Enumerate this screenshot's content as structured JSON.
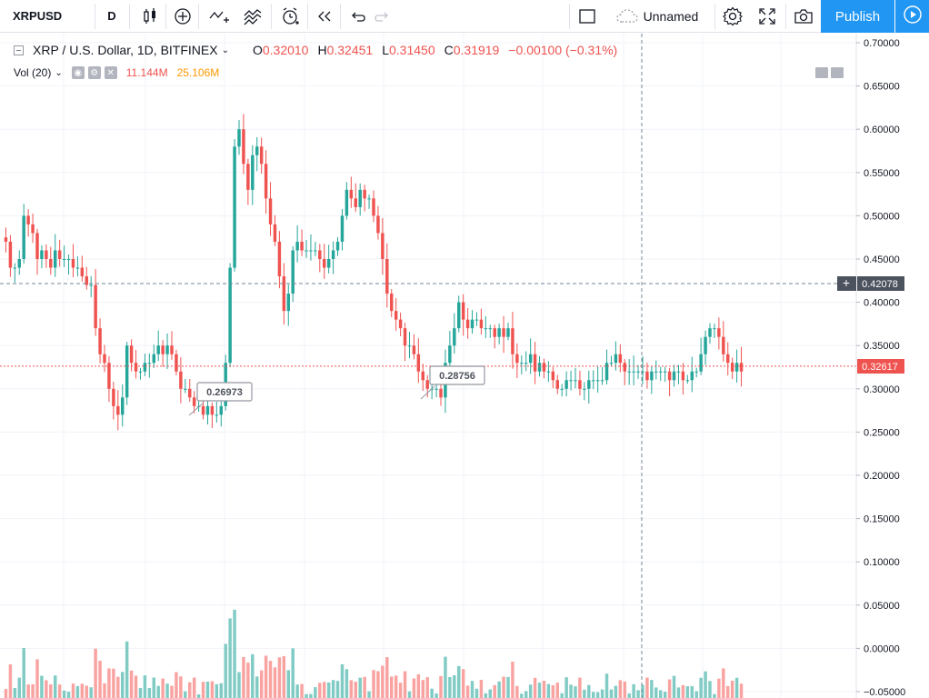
{
  "toolbar": {
    "symbol": "XRPUSD",
    "interval": "D",
    "layout_name": "Unnamed",
    "publish_label": "Publish",
    "icons": [
      "candles-icon",
      "add-indicator-icon",
      "compare-icon",
      "indicators-icon",
      "alert-icon",
      "replay-icon",
      "undo-icon",
      "redo-icon",
      "fullscreen-square-icon",
      "cloud-icon",
      "gear-icon",
      "fullscreen-icon",
      "camera-icon",
      "play-icon"
    ]
  },
  "legend": {
    "title": "XRP / U.S. Dollar, 1D, BITFINEX",
    "o_label": "O",
    "o_value": "0.32010",
    "h_label": "H",
    "h_value": "0.32451",
    "l_label": "L",
    "l_value": "0.31450",
    "c_label": "C",
    "c_value": "0.31919",
    "change": "−0.00100 (−0.31%)"
  },
  "volume_legend": {
    "label": "Vol (20)",
    "value1": "11.144M",
    "value2": "25.106M"
  },
  "price_axis": {
    "ticks": [
      "0.70000",
      "0.65000",
      "0.60000",
      "0.55000",
      "0.50000",
      "0.45000",
      "0.40000",
      "0.35000",
      "0.30000",
      "0.25000",
      "0.20000",
      "0.15000",
      "0.10000",
      "0.05000",
      "0.00000",
      "−0.05000"
    ],
    "crosshair_price": "0.42078",
    "last_price": "0.32617"
  },
  "annotations": {
    "low1": "0.26973",
    "low2": "0.28756"
  },
  "colors": {
    "up": "#26a69a",
    "down": "#ef5350",
    "accent": "#2196f3",
    "vol_up": "#80cbc4",
    "vol_down": "#f9a3a1"
  },
  "chart_data": {
    "type": "candlestick",
    "ylim": [
      -0.05,
      0.7
    ],
    "close": [
      0.47,
      0.44,
      0.44,
      0.45,
      0.5,
      0.49,
      0.48,
      0.45,
      0.46,
      0.45,
      0.44,
      0.46,
      0.45,
      0.45,
      0.45,
      0.44,
      0.44,
      0.43,
      0.42,
      0.42,
      0.37,
      0.34,
      0.33,
      0.3,
      0.28,
      0.27,
      0.29,
      0.35,
      0.33,
      0.32,
      0.32,
      0.33,
      0.33,
      0.34,
      0.35,
      0.34,
      0.35,
      0.34,
      0.32,
      0.3,
      0.3,
      0.29,
      0.28,
      0.28,
      0.27,
      0.28,
      0.27,
      0.27,
      0.28,
      0.33,
      0.44,
      0.58,
      0.6,
      0.56,
      0.53,
      0.57,
      0.58,
      0.56,
      0.52,
      0.49,
      0.47,
      0.43,
      0.39,
      0.41,
      0.46,
      0.47,
      0.46,
      0.46,
      0.46,
      0.46,
      0.45,
      0.44,
      0.45,
      0.46,
      0.47,
      0.5,
      0.53,
      0.52,
      0.51,
      0.53,
      0.52,
      0.52,
      0.5,
      0.48,
      0.45,
      0.41,
      0.39,
      0.38,
      0.37,
      0.35,
      0.35,
      0.34,
      0.32,
      0.31,
      0.3,
      0.3,
      0.3,
      0.29,
      0.33,
      0.35,
      0.37,
      0.4,
      0.38,
      0.37,
      0.38,
      0.38,
      0.37,
      0.37,
      0.37,
      0.36,
      0.37,
      0.36,
      0.37,
      0.34,
      0.33,
      0.33,
      0.33,
      0.34,
      0.32,
      0.33,
      0.32,
      0.32,
      0.31,
      0.3,
      0.3,
      0.31,
      0.31,
      0.31,
      0.3,
      0.3,
      0.31,
      0.31,
      0.31,
      0.31,
      0.33,
      0.33,
      0.34,
      0.33,
      0.32,
      0.32,
      0.32,
      0.32,
      0.32,
      0.31,
      0.32,
      0.32,
      0.32,
      0.32,
      0.31,
      0.32,
      0.32,
      0.31,
      0.31,
      0.32,
      0.32,
      0.34,
      0.36,
      0.37,
      0.37,
      0.36,
      0.34,
      0.33,
      0.32,
      0.33,
      0.32
    ],
    "last_close": 0.32617,
    "volume_axis_note": "volume bars shown in lower pane"
  }
}
